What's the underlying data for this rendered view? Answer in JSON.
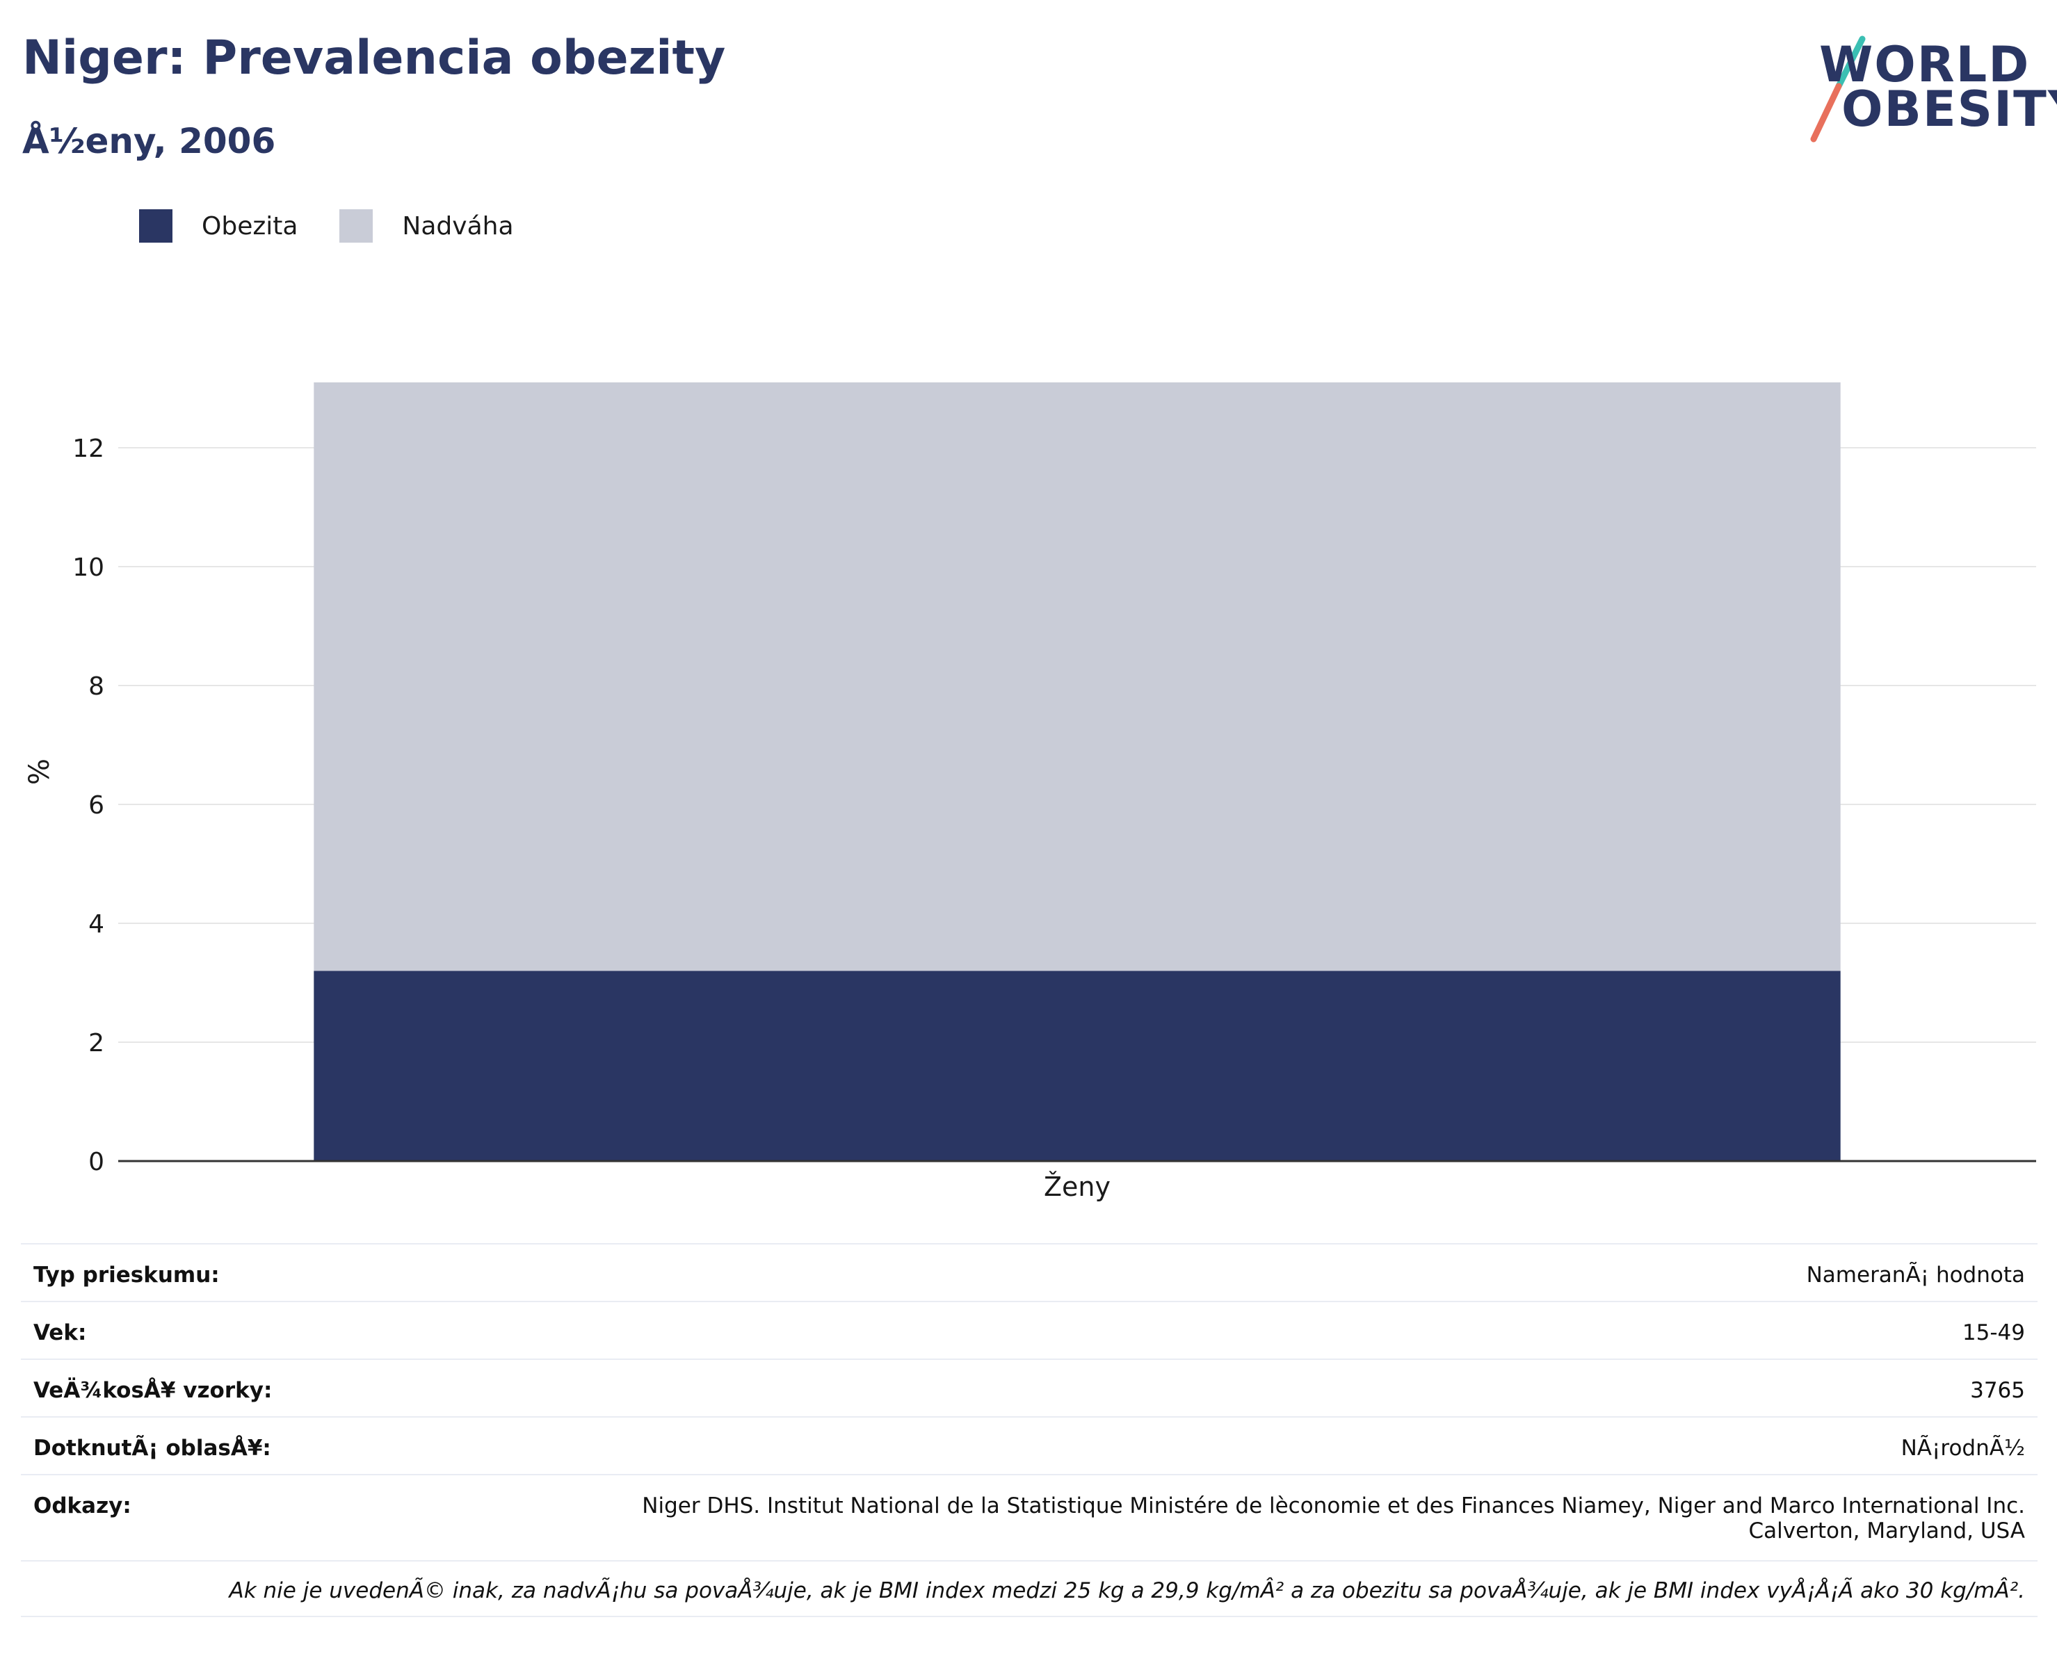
{
  "header": {
    "title": "Niger: Prevalencia obezity",
    "subtitle": "Å½eny, 2006"
  },
  "logo": {
    "line1": "WORLD",
    "line2": "OBESITY",
    "colors": {
      "text": "#2a3663",
      "slash_top": "#3bbfb3",
      "slash_bottom": "#e8705c"
    }
  },
  "colors": {
    "obesity": "#2a3663",
    "overweight": "#c9ccd7",
    "grid": "#e6e6e6",
    "axis": "#333333",
    "text": "#1a1a1a"
  },
  "chart_data": {
    "type": "bar",
    "stacked": true,
    "categories": [
      "Ženy"
    ],
    "series": [
      {
        "name": "Obezita",
        "values": [
          3.2
        ],
        "color": "#2a3663"
      },
      {
        "name": "Nadváha",
        "values": [
          9.9
        ],
        "color": "#c9ccd7"
      }
    ],
    "ylabel": "%",
    "xlabel": "",
    "ylim": [
      0,
      13.1
    ],
    "yticks": [
      0,
      2,
      4,
      6,
      8,
      10,
      12
    ],
    "grid": true,
    "legend_position": "top-left"
  },
  "meta": {
    "rows": [
      {
        "key": "Typ prieskumu:",
        "value": "NameranÃ¡ hodnota"
      },
      {
        "key": "Vek:",
        "value": "15-49"
      },
      {
        "key": "VeÄ¾kosÅ¥ vzorky:",
        "value": "3765"
      },
      {
        "key": "DotknutÃ¡ oblasÅ¥:",
        "value": "NÃ¡rodnÃ½"
      }
    ],
    "refs_key": "Odkazy:",
    "refs_line1": "Niger DHS. Institut National de la Statistique Ministére de lèconomie et des Finances Niamey, Niger and Marco International Inc.",
    "refs_line2": "Calverton, Maryland, USA",
    "note": "Ak nie je uvedenÃ© inak, za nadvÃ¡hu sa povaÅ¾uje, ak je BMI index medzi 25 kg a 29,9 kg/mÂ² a za obezitu sa povaÅ¾uje, ak je BMI index vyÅ¡Å¡Ã ako 30 kg/mÂ²."
  }
}
